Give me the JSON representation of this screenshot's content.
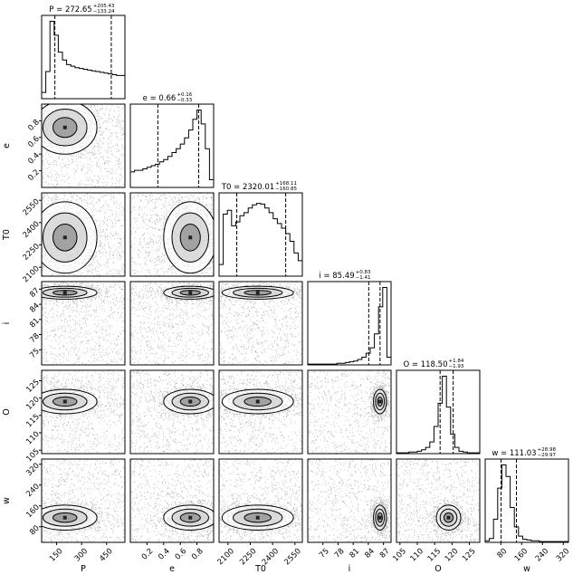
{
  "chart_data": {
    "type": "corner",
    "params": [
      "P",
      "e",
      "T0",
      "i",
      "O",
      "w"
    ],
    "ranges": {
      "P": [
        60,
        560
      ],
      "e": [
        0,
        1
      ],
      "T0": [
        2040,
        2600
      ],
      "i": [
        72,
        88.5
      ],
      "O": [
        104,
        128
      ],
      "w": [
        20,
        340
      ]
    },
    "ticks": {
      "P": [
        150,
        300,
        450
      ],
      "e": [
        0.2,
        0.4,
        0.6,
        0.8
      ],
      "T0": [
        2100,
        2250,
        2400,
        2550
      ],
      "i": [
        75,
        78,
        81,
        84,
        87
      ],
      "O": [
        105,
        110,
        115,
        120,
        125
      ],
      "w": [
        80,
        160,
        240,
        320
      ]
    },
    "tick_labels": {
      "P": [
        "150",
        "300",
        "450"
      ],
      "e": [
        "0.2",
        "0.4",
        "0.6",
        "0.8"
      ],
      "T0": [
        "2100",
        "2250",
        "2400",
        "2550"
      ],
      "i": [
        "75",
        "78",
        "81",
        "84",
        "87"
      ],
      "O": [
        "105",
        "110",
        "115",
        "120",
        "125"
      ],
      "w": [
        "80",
        "160",
        "240",
        "320"
      ]
    },
    "axis_labels": [
      "P",
      "e",
      "T0",
      "i",
      "O",
      "w"
    ],
    "titles": [
      {
        "param": "P",
        "prefix": "P = 272.65",
        "plus": "+205.43",
        "minus": "−133.24"
      },
      {
        "param": "e",
        "prefix": "e = 0.66",
        "plus": "+0.16",
        "minus": "−0.33"
      },
      {
        "param": "T0",
        "prefix": "T0 = 2320.01",
        "plus": "+168.11",
        "minus": "−160.85"
      },
      {
        "param": "i",
        "prefix": "i = 85.49",
        "plus": "+0.83",
        "minus": "−1.41"
      },
      {
        "param": "O",
        "prefix": "O = 118.50",
        "plus": "+1.84",
        "minus": "−1.93"
      },
      {
        "param": "w",
        "prefix": "w = 111.03",
        "plus": "+28.98",
        "minus": "−29.97"
      }
    ],
    "quantiles": {
      "P": [
        139.41,
        478.08
      ],
      "e": [
        0.33,
        0.82
      ],
      "T0": [
        2159.16,
        2488.12
      ],
      "i": [
        84.08,
        86.32
      ],
      "O": [
        116.57,
        120.34
      ],
      "w": [
        81.06,
        140.01
      ]
    },
    "histograms": {
      "P": [
        0.08,
        0.35,
        1.0,
        0.82,
        0.6,
        0.5,
        0.44,
        0.42,
        0.4,
        0.39,
        0.38,
        0.37,
        0.36,
        0.35,
        0.34,
        0.33,
        0.32,
        0.31,
        0.3,
        0.3
      ],
      "e": [
        0.2,
        0.22,
        0.22,
        0.24,
        0.26,
        0.28,
        0.3,
        0.33,
        0.36,
        0.4,
        0.45,
        0.5,
        0.56,
        0.64,
        0.74,
        0.88,
        1.0,
        0.82,
        0.5,
        0.1
      ],
      "T0": [
        0.15,
        0.8,
        0.85,
        0.65,
        0.7,
        0.78,
        0.82,
        0.88,
        0.92,
        0.94,
        0.93,
        0.88,
        0.82,
        0.74,
        0.68,
        0.62,
        0.55,
        0.45,
        0.3,
        0.2
      ],
      "i": [
        0.01,
        0.01,
        0.01,
        0.01,
        0.01,
        0.01,
        0.01,
        0.02,
        0.02,
        0.03,
        0.04,
        0.05,
        0.07,
        0.1,
        0.15,
        0.22,
        0.4,
        0.75,
        1.0,
        0.1
      ],
      "O": [
        0.01,
        0.01,
        0.01,
        0.02,
        0.02,
        0.03,
        0.05,
        0.08,
        0.15,
        0.35,
        0.65,
        1.0,
        0.6,
        0.25,
        0.08,
        0.03,
        0.02,
        0.01,
        0.01,
        0.01
      ],
      "w": [
        0.02,
        0.05,
        0.3,
        0.7,
        1.0,
        0.85,
        0.45,
        0.2,
        0.08,
        0.04,
        0.03,
        0.02,
        0.02,
        0.01,
        0.01,
        0.01,
        0.01,
        0.01,
        0.01,
        0.01
      ]
    }
  }
}
